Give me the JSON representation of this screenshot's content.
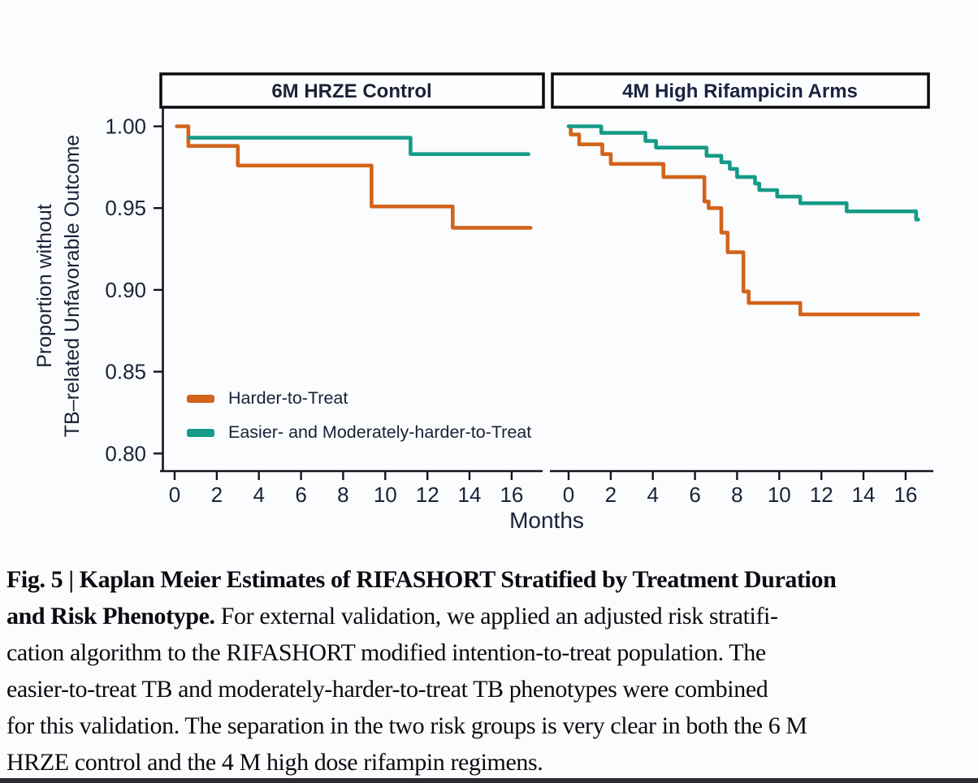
{
  "figure": {
    "caption": {
      "lines": [
        {
          "bold": "Fig. 5 | Kaplan Meier Estimates of RIFASHORT Stratified by Treatment Duration",
          "regular": ""
        },
        {
          "bold": "and Risk Phenotype.",
          "regular": " For external validation, we applied an adjusted risk stratifi-"
        },
        {
          "bold": "",
          "regular": "cation algorithm to the RIFASHORT modified intention-to-treat population. The"
        },
        {
          "bold": "",
          "regular": "easier-to-treat TB and moderately-harder-to-treat TB phenotypes were combined"
        },
        {
          "bold": "",
          "regular": "for this validation. The separation in the two risk groups is very clear in both the 6 M"
        },
        {
          "bold": "",
          "regular": "HRZE control and the 4 M high dose rifampin regimens."
        }
      ]
    }
  },
  "chart_data": {
    "type": "line",
    "subtype": "kaplan_meier_step",
    "title": "",
    "xlabel": "Months",
    "ylabel_lines": [
      "Proportion without",
      "TB–related Unfavorable Outcome"
    ],
    "x_ticks": [
      0,
      2,
      4,
      6,
      8,
      10,
      12,
      14,
      16
    ],
    "y_tick_labels": [
      "1.00",
      "0.95",
      "0.90",
      "0.85",
      "0.80"
    ],
    "y_tick_values": [
      1.0,
      0.95,
      0.9,
      0.85,
      0.8
    ],
    "xlim": [
      0,
      17.3
    ],
    "ylim": [
      0.79,
      1.005
    ],
    "grid": false,
    "colors": {
      "harder_to_treat": "#D2641C",
      "easier_moderate": "#159B87"
    },
    "legend": {
      "position": "inside-left-panel-lower-left",
      "items": [
        {
          "label": "Harder-to-Treat",
          "color": "#D2641C"
        },
        {
          "label": "Easier- and Moderately-harder-to-Treat",
          "color": "#159B87"
        }
      ]
    },
    "panels": [
      {
        "title": "6M HRZE Control",
        "series": [
          {
            "name": "Harder-to-Treat",
            "color": "#D2641C",
            "end_month": 16.9,
            "steps": [
              [
                0.1,
                1.0
              ],
              [
                0.65,
                0.988
              ],
              [
                3.0,
                0.976
              ],
              [
                9.35,
                0.951
              ],
              [
                13.2,
                0.938
              ]
            ]
          },
          {
            "name": "Easier- and Moderately-harder-to-Treat",
            "color": "#159B87",
            "end_month": 16.8,
            "steps": [
              [
                0.7,
                0.993
              ],
              [
                11.2,
                0.983
              ]
            ]
          }
        ]
      },
      {
        "title": "4M High Rifampicin Arms",
        "series": [
          {
            "name": "Harder-to-Treat",
            "color": "#D2641C",
            "end_month": 16.6,
            "steps": [
              [
                0.0,
                1.0
              ],
              [
                0.1,
                0.995
              ],
              [
                0.5,
                0.989
              ],
              [
                1.6,
                0.983
              ],
              [
                2.0,
                0.977
              ],
              [
                4.5,
                0.969
              ],
              [
                6.45,
                0.954
              ],
              [
                6.65,
                0.95
              ],
              [
                7.25,
                0.935
              ],
              [
                7.55,
                0.923
              ],
              [
                8.3,
                0.899
              ],
              [
                8.55,
                0.892
              ],
              [
                11.0,
                0.885
              ]
            ]
          },
          {
            "name": "Easier- and Moderately-harder-to-Treat",
            "color": "#159B87",
            "end_month": 16.6,
            "steps": [
              [
                0.0,
                1.0
              ],
              [
                1.55,
                0.996
              ],
              [
                3.65,
                0.991
              ],
              [
                4.15,
                0.987
              ],
              [
                6.55,
                0.982
              ],
              [
                7.25,
                0.978
              ],
              [
                7.65,
                0.974
              ],
              [
                8.0,
                0.969
              ],
              [
                8.85,
                0.965
              ],
              [
                9.05,
                0.961
              ],
              [
                9.9,
                0.957
              ],
              [
                11.0,
                0.953
              ],
              [
                13.2,
                0.948
              ],
              [
                16.5,
                0.943
              ]
            ]
          }
        ]
      }
    ]
  }
}
